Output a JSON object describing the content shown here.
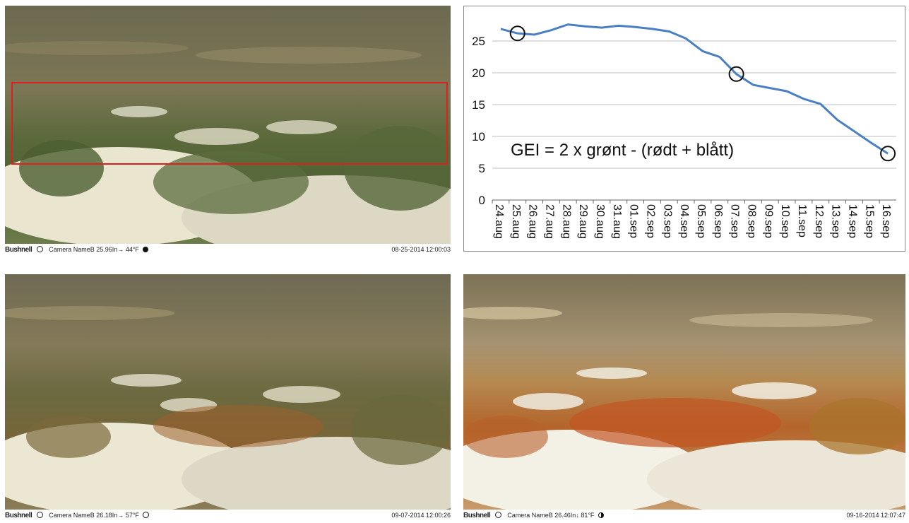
{
  "photos": [
    {
      "brand": "Bushnell",
      "camera_info": "Camera NameB 25.96In→ 44°F",
      "moon": "full",
      "timestamp": "08-25-2014 12:00:03"
    },
    {
      "brand": "Bushnell",
      "camera_info": "Camera NameB 26.18In→ 57°F",
      "moon": "first-quarter",
      "timestamp": "09-07-2014 12:00:26"
    },
    {
      "brand": "Bushnell",
      "camera_info": "Camera NameB 26.46In↓ 81°F",
      "moon": "last-quarter",
      "timestamp": "09-16-2014 12:07:47"
    }
  ],
  "colors": {
    "line": "#4a7fc4",
    "roi_box": "#e0201e",
    "grid": "#bfbfbf"
  },
  "chart_data": {
    "type": "line",
    "annotation": "GEI = 2 x grønt - (rødt + blått)",
    "categories": [
      "24.aug",
      "25.aug",
      "26.aug",
      "27.aug",
      "28.aug",
      "29.aug",
      "30.aug",
      "31.aug",
      "01.sep",
      "02.sep",
      "03.sep",
      "04.sep",
      "05.sep",
      "06.sep",
      "07.sep",
      "08.sep",
      "09.sep",
      "10.sep",
      "11.sep",
      "12.sep",
      "13.sep",
      "14.sep",
      "15.sep",
      "16.sep"
    ],
    "series": [
      {
        "values": [
          26.9,
          26.2,
          26.0,
          26.7,
          27.6,
          27.3,
          27.1,
          27.4,
          27.2,
          26.9,
          26.5,
          25.4,
          23.4,
          22.5,
          19.8,
          18.1,
          17.6,
          17.1,
          15.9,
          15.1,
          12.6,
          10.8,
          9.0,
          7.3
        ]
      }
    ],
    "y_ticks": [
      "0",
      "5",
      "10",
      "15",
      "20",
      "25"
    ],
    "ylim": [
      0,
      30
    ],
    "grid": true,
    "highlighted_points": [
      "25.aug",
      "07.sep",
      "16.sep"
    ]
  }
}
